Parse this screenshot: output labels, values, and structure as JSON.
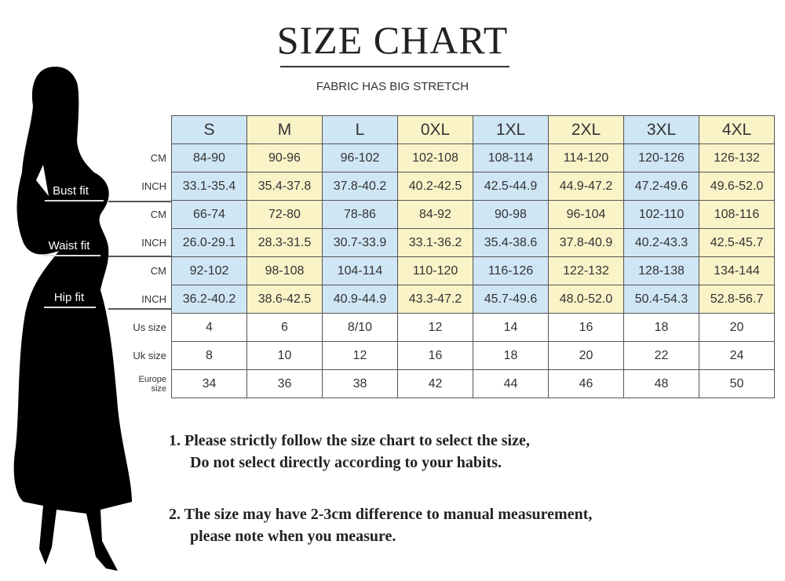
{
  "title": "SIZE CHART",
  "subtitle": "FABRIC HAS BIG STRETCH",
  "fit_labels": [
    "Bust fit",
    "Waist fit",
    "Hip fit"
  ],
  "sizes": [
    "S",
    "M",
    "L",
    "0XL",
    "1XL",
    "2XL",
    "3XL",
    "4XL"
  ],
  "rows": [
    {
      "label": "CM",
      "values": [
        "84-90",
        "90-96",
        "96-102",
        "102-108",
        "108-114",
        "114-120",
        "120-126",
        "126-132"
      ]
    },
    {
      "label": "INCH",
      "values": [
        "33.1-35.4",
        "35.4-37.8",
        "37.8-40.2",
        "40.2-42.5",
        "42.5-44.9",
        "44.9-47.2",
        "47.2-49.6",
        "49.6-52.0"
      ]
    },
    {
      "label": "CM",
      "values": [
        "66-74",
        "72-80",
        "78-86",
        "84-92",
        "90-98",
        "96-104",
        "102-110",
        "108-116"
      ]
    },
    {
      "label": "INCH",
      "values": [
        "26.0-29.1",
        "28.3-31.5",
        "30.7-33.9",
        "33.1-36.2",
        "35.4-38.6",
        "37.8-40.9",
        "40.2-43.3",
        "42.5-45.7"
      ]
    },
    {
      "label": "CM",
      "values": [
        "92-102",
        "98-108",
        "104-114",
        "110-120",
        "116-126",
        "122-132",
        "128-138",
        "134-144"
      ]
    },
    {
      "label": "INCH",
      "values": [
        "36.2-40.2",
        "38.6-42.5",
        "40.9-44.9",
        "43.3-47.2",
        "45.7-49.6",
        "48.0-52.0",
        "50.4-54.3",
        "52.8-56.7"
      ]
    },
    {
      "label": "Us size",
      "values": [
        "4",
        "6",
        "8/10",
        "12",
        "14",
        "16",
        "18",
        "20"
      ]
    },
    {
      "label": "Uk size",
      "values": [
        "8",
        "10",
        "12",
        "16",
        "18",
        "20",
        "22",
        "24"
      ]
    },
    {
      "label": "Europe size",
      "values": [
        "34",
        "36",
        "38",
        "42",
        "44",
        "46",
        "48",
        "50"
      ]
    }
  ],
  "colors": {
    "blue": "#cfe6f5",
    "yellow": "#fbf3c8"
  },
  "notes": [
    {
      "line1": "1.  Please strictly follow the size chart to select the size,",
      "line2": "Do not select directly according to your habits."
    },
    {
      "line1": "2.  The size may have 2-3cm difference  to manual measurement,",
      "line2": "please note when you measure."
    }
  ]
}
